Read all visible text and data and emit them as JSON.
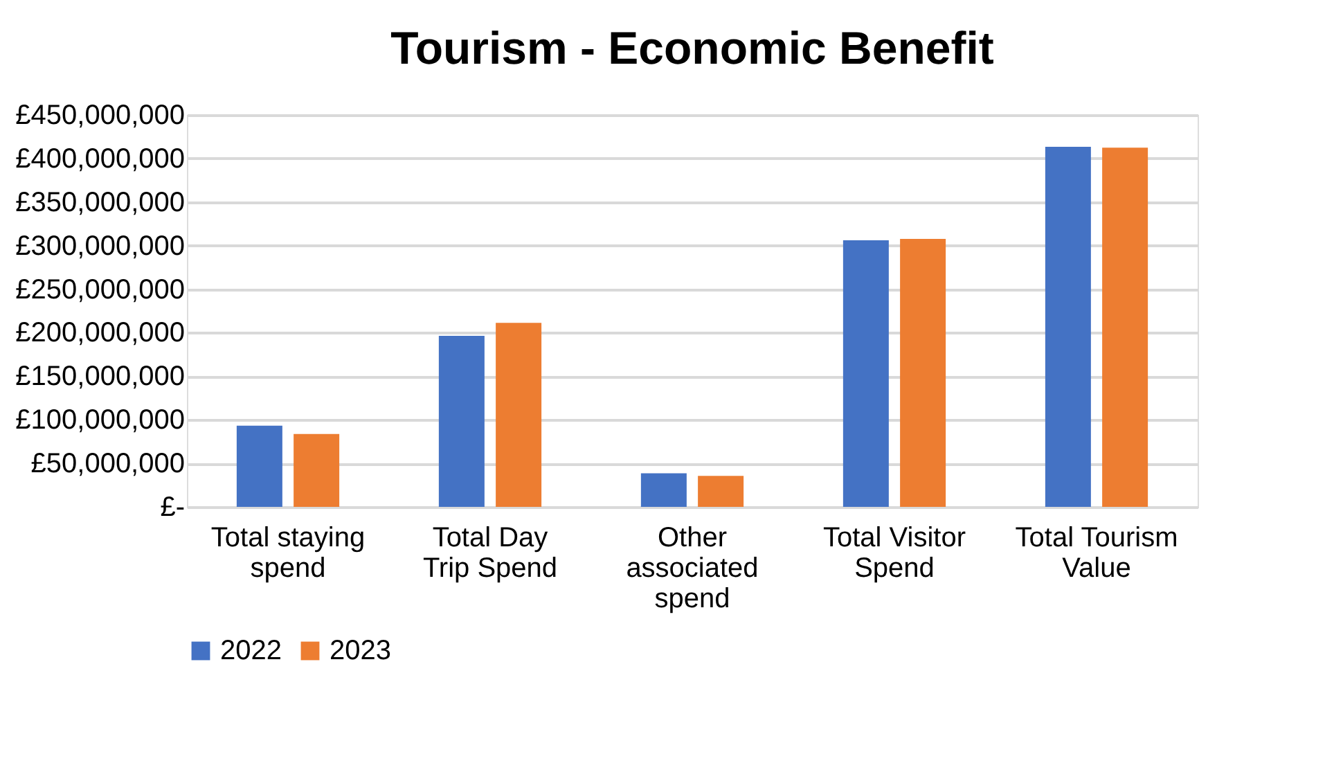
{
  "chart_data": {
    "type": "bar",
    "title": "Tourism - Economic Benefit",
    "categories": [
      "Total staying spend",
      "Total Day Trip Spend",
      "Other associated spend",
      "Total Visitor Spend",
      "Total Tourism Value"
    ],
    "series": [
      {
        "name": "2022",
        "color": "#4472c4",
        "values": [
          93200000,
          196400000,
          38600000,
          306000000,
          413500000
        ]
      },
      {
        "name": "2023",
        "color": "#ed7d31",
        "values": [
          83600000,
          211200000,
          35500000,
          307600000,
          412400000
        ]
      }
    ],
    "ylim": [
      0,
      450000000
    ],
    "yticks": [
      {
        "value": 0,
        "label": "£-"
      },
      {
        "value": 50000000,
        "label": "£50,000,000"
      },
      {
        "value": 100000000,
        "label": "£100,000,000"
      },
      {
        "value": 150000000,
        "label": "£150,000,000"
      },
      {
        "value": 200000000,
        "label": "£200,000,000"
      },
      {
        "value": 250000000,
        "label": "£250,000,000"
      },
      {
        "value": 300000000,
        "label": "£300,000,000"
      },
      {
        "value": 350000000,
        "label": "£350,000,000"
      },
      {
        "value": 400000000,
        "label": "£400,000,000"
      },
      {
        "value": 450000000,
        "label": "£450,000,000"
      }
    ],
    "grid": "y",
    "legend": "bottom"
  }
}
